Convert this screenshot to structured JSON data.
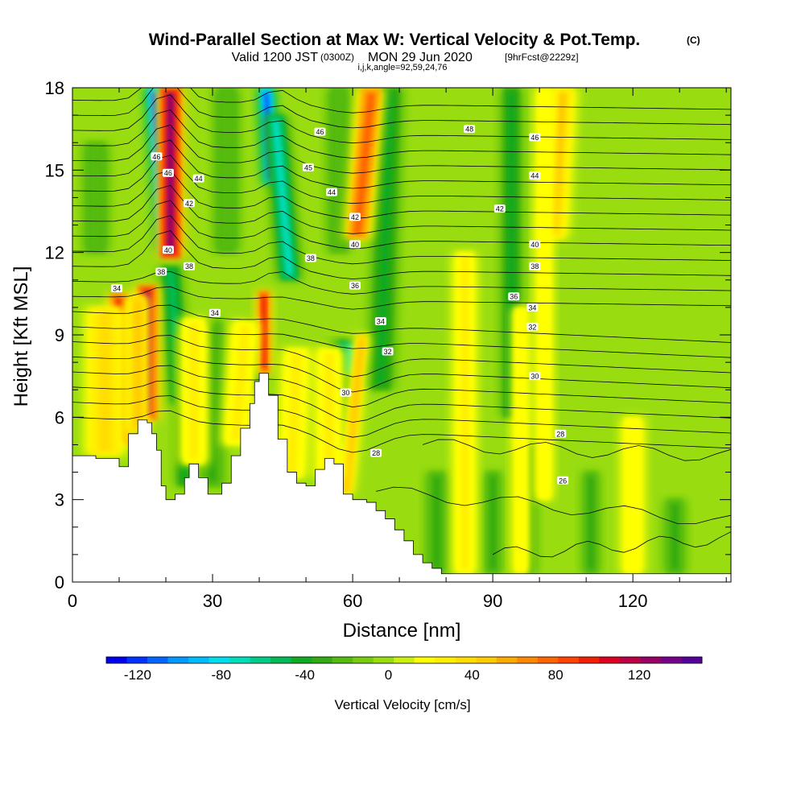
{
  "header": {
    "title": "Wind-Parallel Section at Max W: Vertical Velocity & Pot.Temp.",
    "title_mark": "(C)",
    "valid_prefix": "Valid 1200 JST",
    "valid_zulu": "(0300Z)",
    "valid_date": "MON 29 Jun 2020",
    "forecast_info": "[9hrFcst@2229z]",
    "indices": "i,j,k,angle=92,59,24,76"
  },
  "colorbar": {
    "label": "Vertical Velocity [cm/s]",
    "tick_labels": [
      "-120",
      "-80",
      "-40",
      "0",
      "40",
      "80",
      "120"
    ],
    "tick_values": [
      -120,
      -80,
      -40,
      0,
      40,
      80,
      120
    ],
    "min": -135,
    "max": 150,
    "colors": [
      "#0000ee",
      "#0033ff",
      "#0066ff",
      "#0099ff",
      "#00bbff",
      "#00ddee",
      "#00ddbb",
      "#00cc88",
      "#00bb55",
      "#11aa22",
      "#33aa11",
      "#55bb11",
      "#77cc11",
      "#99dd11",
      "#ccee11",
      "#ffff00",
      "#ffee00",
      "#ffdd00",
      "#ffcc00",
      "#ffaa00",
      "#ff8800",
      "#ff6600",
      "#ff4400",
      "#ee2200",
      "#dd0022",
      "#bb0044",
      "#990066",
      "#770088",
      "#550099"
    ]
  },
  "chart_data": {
    "type": "heatmap",
    "title": "Wind-Parallel Section at Max W: Vertical Velocity & Pot.Temp.",
    "xlabel": "Distance [nm]",
    "ylabel": "Height [Kft MSL]",
    "xlim": [
      0,
      141
    ],
    "ylim": [
      0,
      18
    ],
    "x_ticks": [
      0,
      30,
      60,
      90,
      120
    ],
    "y_ticks": [
      0,
      3,
      6,
      9,
      12,
      15,
      18
    ],
    "x_tick_labels": [
      "0",
      "30",
      "60",
      "90",
      "120"
    ],
    "y_tick_labels": [
      "0",
      "3",
      "6",
      "9",
      "12",
      "15",
      "18"
    ],
    "field": "Vertical Velocity",
    "field_units": "cm/s",
    "contour_field": "Pot.Temp.",
    "contour_labels": [
      {
        "text": "48",
        "x": 85,
        "y": 16.5
      },
      {
        "text": "46",
        "x": 53,
        "y": 16.4
      },
      {
        "text": "46",
        "x": 99,
        "y": 16.2
      },
      {
        "text": "46",
        "x": 18,
        "y": 15.5
      },
      {
        "text": "46",
        "x": 20.5,
        "y": 14.9
      },
      {
        "text": "45",
        "x": 50.5,
        "y": 15.1
      },
      {
        "text": "44",
        "x": 27,
        "y": 14.7
      },
      {
        "text": "44",
        "x": 99,
        "y": 14.8
      },
      {
        "text": "44",
        "x": 55.5,
        "y": 14.2
      },
      {
        "text": "42",
        "x": 25,
        "y": 13.8
      },
      {
        "text": "42",
        "x": 91.5,
        "y": 13.6
      },
      {
        "text": "42",
        "x": 60.5,
        "y": 13.3
      },
      {
        "text": "40",
        "x": 60.5,
        "y": 12.3
      },
      {
        "text": "40",
        "x": 99,
        "y": 12.3
      },
      {
        "text": "40",
        "x": 20.5,
        "y": 12.1
      },
      {
        "text": "38",
        "x": 51,
        "y": 11.8
      },
      {
        "text": "38",
        "x": 99,
        "y": 11.5
      },
      {
        "text": "38",
        "x": 25,
        "y": 11.5
      },
      {
        "text": "38",
        "x": 19,
        "y": 11.3
      },
      {
        "text": "36",
        "x": 60.5,
        "y": 10.8
      },
      {
        "text": "36",
        "x": 94.5,
        "y": 10.4
      },
      {
        "text": "34",
        "x": 9.5,
        "y": 10.7
      },
      {
        "text": "34",
        "x": 98.5,
        "y": 10.0
      },
      {
        "text": "34",
        "x": 30.5,
        "y": 9.8
      },
      {
        "text": "34",
        "x": 66,
        "y": 9.5
      },
      {
        "text": "32",
        "x": 98.5,
        "y": 9.3
      },
      {
        "text": "32",
        "x": 67.5,
        "y": 8.4
      },
      {
        "text": "30",
        "x": 99,
        "y": 7.5
      },
      {
        "text": "30",
        "x": 58.5,
        "y": 6.9
      },
      {
        "text": "28",
        "x": 104.5,
        "y": 5.4
      },
      {
        "text": "28",
        "x": 65,
        "y": 4.7
      },
      {
        "text": "26",
        "x": 105,
        "y": 3.7
      }
    ],
    "terrain": [
      [
        0,
        4.6
      ],
      [
        5,
        4.5
      ],
      [
        10,
        4.2
      ],
      [
        12,
        5.4
      ],
      [
        14,
        5.9
      ],
      [
        16,
        5.8
      ],
      [
        17,
        5.4
      ],
      [
        18,
        4.8
      ],
      [
        19,
        3.5
      ],
      [
        20,
        3.0
      ],
      [
        22,
        3.2
      ],
      [
        24,
        3.8
      ],
      [
        25,
        4.3
      ],
      [
        27,
        3.8
      ],
      [
        29,
        3.2
      ],
      [
        30,
        3.2
      ],
      [
        32,
        3.6
      ],
      [
        34,
        4.6
      ],
      [
        36,
        5.6
      ],
      [
        38,
        6.5
      ],
      [
        39,
        7.3
      ],
      [
        40,
        7.6
      ],
      [
        41,
        7.6
      ],
      [
        42,
        6.8
      ],
      [
        44,
        5.2
      ],
      [
        46,
        4.0
      ],
      [
        48,
        3.6
      ],
      [
        50,
        3.5
      ],
      [
        52,
        4.1
      ],
      [
        54,
        4.5
      ],
      [
        56,
        4.3
      ],
      [
        58,
        3.2
      ],
      [
        60,
        3.0
      ],
      [
        62,
        3.0
      ],
      [
        63,
        2.9
      ],
      [
        65,
        2.6
      ],
      [
        67,
        2.3
      ],
      [
        69,
        1.9
      ],
      [
        71,
        1.5
      ],
      [
        73,
        1.0
      ],
      [
        75,
        0.7
      ],
      [
        77,
        0.5
      ],
      [
        79,
        0.3
      ],
      [
        141,
        0.3
      ]
    ],
    "updrafts": [
      {
        "x0": 21,
        "x1": 21,
        "y0": 18,
        "y1": 11.8,
        "w": 1.5,
        "v": 125
      },
      {
        "x0": 16,
        "x1": 16,
        "y0": 10.8,
        "y1": 5.9,
        "w": 1.4,
        "v": 115
      },
      {
        "x0": 10,
        "x1": 10,
        "y0": 10.5,
        "y1": 5,
        "w": 1.3,
        "v": 95
      },
      {
        "x0": 41,
        "x1": 41,
        "y0": 10.6,
        "y1": 7.6,
        "w": 0.9,
        "v": 95
      },
      {
        "x0": 64,
        "x1": 61,
        "y0": 18,
        "y1": 12.5,
        "w": 1.5,
        "v": 80
      },
      {
        "x0": 62,
        "x1": 58.5,
        "y0": 9,
        "y1": 3.2,
        "w": 0.9,
        "v": 50
      },
      {
        "x0": 105,
        "x1": 103,
        "y0": 18,
        "y1": 12.5,
        "w": 1.6,
        "v": 45
      },
      {
        "x0": 7,
        "x1": 7,
        "y0": 10,
        "y1": 4.6,
        "w": 2.2,
        "v": 40
      },
      {
        "x0": 14,
        "x1": 14,
        "y0": 10.4,
        "y1": 5.5,
        "w": 1.2,
        "v": 50
      },
      {
        "x0": 26,
        "x1": 26,
        "y0": 9.6,
        "y1": 4.3,
        "w": 1.6,
        "v": 30
      },
      {
        "x0": 37,
        "x1": 35,
        "y0": 9.5,
        "y1": 5,
        "w": 1.6,
        "v": 30
      },
      {
        "x0": 48,
        "x1": 47,
        "y0": 8.5,
        "y1": 3.8,
        "w": 1.6,
        "v": 30
      },
      {
        "x0": 55,
        "x1": 55,
        "y0": 8.5,
        "y1": 3.8,
        "w": 1.6,
        "v": 25
      },
      {
        "x0": 84,
        "x1": 84,
        "y0": 12,
        "y1": 0.3,
        "w": 1.3,
        "v": 25
      },
      {
        "x0": 96,
        "x1": 96,
        "y0": 10,
        "y1": 0.3,
        "w": 1.0,
        "v": 22
      },
      {
        "x0": 101,
        "x1": 101,
        "y0": 18,
        "y1": 3,
        "w": 1.0,
        "v": 20
      },
      {
        "x0": 120,
        "x1": 120,
        "y0": 6,
        "y1": 0.3,
        "w": 1.3,
        "v": 18
      }
    ],
    "downdrafts": [
      {
        "x0": 17.5,
        "x1": 20,
        "y0": 18,
        "y1": 12,
        "w": 1.1,
        "v": -115
      },
      {
        "x0": 41.5,
        "x1": 42.5,
        "y0": 18,
        "y1": 14.5,
        "w": 1.0,
        "v": -110
      },
      {
        "x0": 43.5,
        "x1": 46.5,
        "y0": 17,
        "y1": 11,
        "w": 1.3,
        "v": -70
      },
      {
        "x0": 21,
        "x1": 23,
        "y0": 11.5,
        "y1": 6.5,
        "w": 1.3,
        "v": -55
      },
      {
        "x0": 60,
        "x1": 60,
        "y0": 8.8,
        "y1": 7.2,
        "w": 2.2,
        "v": -75
      },
      {
        "x0": 59,
        "x1": 57,
        "y0": 7.5,
        "y1": 5,
        "w": 1.2,
        "v": -45
      },
      {
        "x0": 68,
        "x1": 66,
        "y0": 18,
        "y1": 7,
        "w": 1.5,
        "v": -45
      },
      {
        "x0": 94,
        "x1": 94,
        "y0": 18,
        "y1": 6,
        "w": 1.2,
        "v": -40
      },
      {
        "x0": 97,
        "x1": 97,
        "y0": 5,
        "y1": 0.3,
        "w": 1.2,
        "v": -45
      },
      {
        "x0": 24,
        "x1": 24,
        "y0": 9,
        "y1": 3.5,
        "w": 1.1,
        "v": -40
      },
      {
        "x0": 30,
        "x1": 30,
        "y0": 9.5,
        "y1": 3.5,
        "w": 1.3,
        "v": -35
      },
      {
        "x0": 39,
        "x1": 39,
        "y0": 9.5,
        "y1": 7,
        "w": 0.8,
        "v": -45
      },
      {
        "x0": 5,
        "x1": 5,
        "y0": 16,
        "y1": 12,
        "w": 1.4,
        "v": -25
      },
      {
        "x0": 33,
        "x1": 33,
        "y0": 18,
        "y1": 12,
        "w": 1.4,
        "v": -25
      },
      {
        "x0": 57,
        "x1": 57,
        "y0": 18,
        "y1": 12,
        "w": 1.3,
        "v": -25
      },
      {
        "x0": 78,
        "x1": 78,
        "y0": 4,
        "y1": 0.3,
        "w": 1.2,
        "v": -30
      },
      {
        "x0": 90,
        "x1": 90,
        "y0": 4,
        "y1": 0.3,
        "w": 1.0,
        "v": -30
      },
      {
        "x0": 111,
        "x1": 111,
        "y0": 4,
        "y1": 0.3,
        "w": 1.0,
        "v": -30
      },
      {
        "x0": 129,
        "x1": 129,
        "y0": 3,
        "y1": 0.3,
        "w": 1.2,
        "v": -30
      }
    ]
  }
}
